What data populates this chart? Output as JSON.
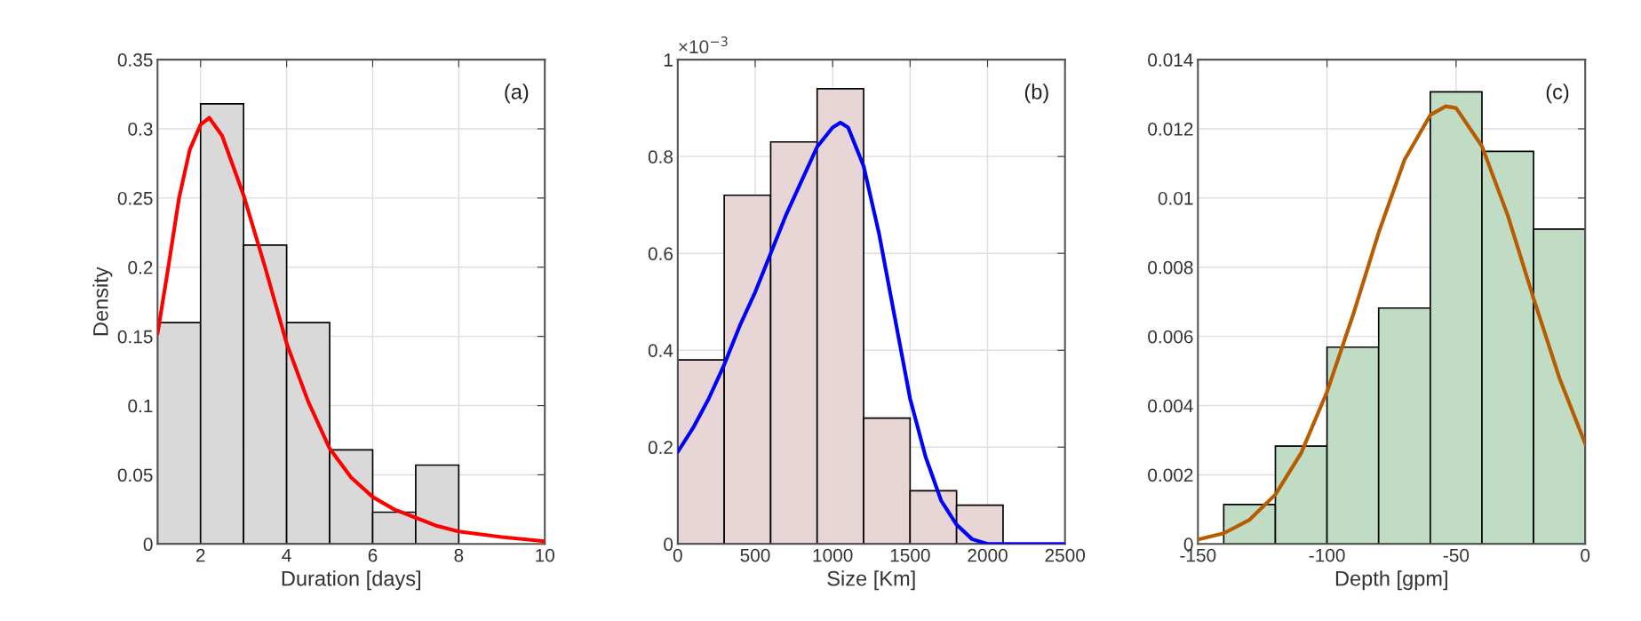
{
  "chart_data": [
    {
      "type": "histogram",
      "xlabel": "Duration [days]",
      "ylabel": "Density",
      "annotations": [
        "(a)"
      ],
      "bins": [
        1,
        2,
        3,
        4,
        5,
        6,
        7,
        8
      ],
      "values": [
        0.16,
        0.318,
        0.216,
        0.16,
        0.068,
        0.023,
        0.057
      ],
      "color": "#d9d9d9",
      "series": [
        {
          "type": "line",
          "color": "#ff0000",
          "x": [
            1,
            1.25,
            1.5,
            1.75,
            2,
            2.2,
            2.5,
            3,
            3.5,
            4,
            4.5,
            5,
            5.5,
            6,
            6.5,
            7,
            7.5,
            8,
            9,
            10
          ],
          "values": [
            0.152,
            0.2,
            0.25,
            0.285,
            0.303,
            0.308,
            0.295,
            0.252,
            0.2,
            0.145,
            0.103,
            0.069,
            0.048,
            0.034,
            0.025,
            0.019,
            0.013,
            0.009,
            0.005,
            0.002
          ]
        }
      ],
      "xlim": [
        1,
        10
      ],
      "xticks": [
        2,
        4,
        6,
        8,
        10
      ],
      "ylim": [
        0,
        0.35
      ],
      "yticks": [
        0,
        0.05,
        0.1,
        0.15,
        0.2,
        0.25,
        0.3,
        0.35
      ],
      "grid": true
    },
    {
      "type": "histogram",
      "xlabel": "Size [Km]",
      "annotations": [
        "(b)",
        "×10$^{−3}$"
      ],
      "bins": [
        0,
        300,
        600,
        900,
        1200,
        1500,
        1800,
        2100
      ],
      "values": [
        0.38,
        0.72,
        0.83,
        0.94,
        0.26,
        0.11,
        0.08
      ],
      "color": "#e8d5d5",
      "series": [
        {
          "type": "line",
          "color": "#0000ff",
          "x": [
            0,
            100,
            200,
            300,
            400,
            500,
            600,
            700,
            800,
            900,
            1000,
            1050,
            1100,
            1200,
            1300,
            1400,
            1500,
            1600,
            1700,
            1800,
            1900,
            2000,
            2500
          ],
          "values": [
            0.19,
            0.24,
            0.3,
            0.37,
            0.45,
            0.52,
            0.6,
            0.68,
            0.75,
            0.82,
            0.86,
            0.87,
            0.86,
            0.78,
            0.64,
            0.47,
            0.3,
            0.18,
            0.09,
            0.04,
            0.01,
            0,
            0
          ]
        }
      ],
      "xlim": [
        0,
        2500
      ],
      "xticks": [
        0,
        500,
        1000,
        1500,
        2000,
        2500
      ],
      "ylim": [
        0,
        1
      ],
      "yticks": [
        0,
        0.2,
        0.4,
        0.6,
        0.8,
        1
      ],
      "grid": true
    },
    {
      "type": "histogram",
      "xlabel": "Depth [gpm]",
      "annotations": [
        "(c)"
      ],
      "bins": [
        -140,
        -120,
        -100,
        -80,
        -60,
        -40,
        -20,
        0
      ],
      "values": [
        0.00114,
        0.00283,
        0.00569,
        0.00682,
        0.01307,
        0.01135,
        0.0091
      ],
      "color": "#c0dcc4",
      "series": [
        {
          "type": "line",
          "color": "#b85c00",
          "x": [
            -150,
            -140,
            -130,
            -120,
            -110,
            -100,
            -90,
            -80,
            -70,
            -60,
            -54,
            -50,
            -40,
            -30,
            -20,
            -10,
            0
          ],
          "values": [
            0.00013,
            0.00031,
            0.0007,
            0.00143,
            0.00263,
            0.0044,
            0.0066,
            0.009,
            0.0111,
            0.0124,
            0.01265,
            0.0126,
            0.0115,
            0.0095,
            0.0071,
            0.0048,
            0.0029
          ]
        }
      ],
      "xlim": [
        -150,
        0
      ],
      "xticks": [
        -150,
        -100,
        -50,
        0
      ],
      "ylim": [
        0,
        0.014
      ],
      "yticks": [
        0,
        0.002,
        0.004,
        0.006,
        0.008,
        0.01,
        0.012,
        0.014
      ],
      "grid": true
    }
  ]
}
